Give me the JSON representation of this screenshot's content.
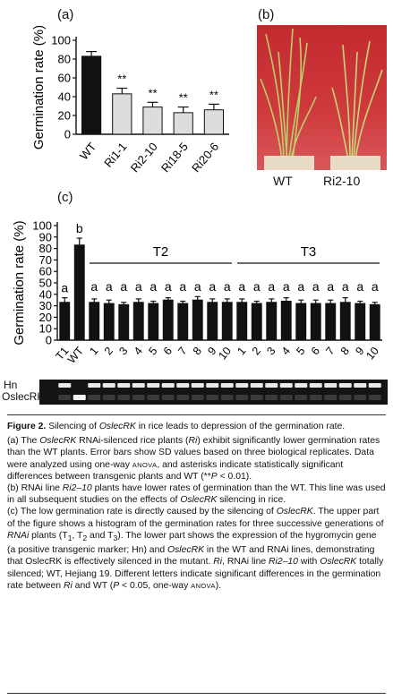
{
  "panels": {
    "a": "(a)",
    "b": "(b)",
    "c": "(c)"
  },
  "photo": {
    "labels": [
      "WT",
      "Ri2-10"
    ]
  },
  "gel": {
    "rows": [
      "Hn",
      "OslecRK"
    ]
  },
  "chart_data": [
    {
      "type": "bar",
      "panel": "a",
      "categories": [
        "WT",
        "Ri1-1",
        "Ri2-10",
        "Ri18-5",
        "Ri20-6"
      ],
      "values": [
        83,
        43,
        29,
        23,
        26
      ],
      "errors": [
        5,
        6,
        5,
        6,
        6
      ],
      "annotations": [
        "",
        "**",
        "**",
        "**",
        "**"
      ],
      "colors": [
        "#111111",
        "#dddddd",
        "#dddddd",
        "#dddddd",
        "#dddddd"
      ],
      "ylabel": "Germination rate (%)",
      "ylim": [
        0,
        100
      ],
      "yticks": [
        0,
        20,
        40,
        60,
        80,
        100
      ]
    },
    {
      "type": "bar",
      "panel": "c",
      "categories": [
        "T1",
        "WT",
        "1",
        "2",
        "3",
        "4",
        "5",
        "6",
        "7",
        "8",
        "9",
        "10",
        "1",
        "2",
        "3",
        "4",
        "5",
        "6",
        "7",
        "8",
        "9",
        "10"
      ],
      "values": [
        33,
        83,
        33,
        32,
        31,
        33,
        32,
        35,
        32,
        35,
        33,
        33,
        33,
        32,
        33,
        34,
        32,
        32,
        32,
        33,
        32,
        31
      ],
      "errors": [
        4,
        6,
        3,
        3,
        2,
        3,
        2,
        2,
        2,
        3,
        3,
        3,
        3,
        2,
        3,
        3,
        3,
        3,
        3,
        4,
        2,
        2
      ],
      "letters": [
        "a",
        "b",
        "a",
        "a",
        "a",
        "a",
        "a",
        "a",
        "a",
        "a",
        "a",
        "a",
        "a",
        "a",
        "a",
        "a",
        "a",
        "a",
        "a",
        "a",
        "a",
        "a"
      ],
      "colors": [
        "#111111",
        "#111111",
        "#111111",
        "#111111",
        "#111111",
        "#111111",
        "#111111",
        "#111111",
        "#111111",
        "#111111",
        "#111111",
        "#111111",
        "#111111",
        "#111111",
        "#111111",
        "#111111",
        "#111111",
        "#111111",
        "#111111",
        "#111111",
        "#111111",
        "#111111"
      ],
      "groups": [
        {
          "label": "T2",
          "from": 2,
          "to": 11
        },
        {
          "label": "T3",
          "from": 12,
          "to": 21
        }
      ],
      "ylabel": "Germination rate (%)",
      "ylim": [
        0,
        100
      ],
      "yticks": [
        0,
        10,
        20,
        30,
        40,
        50,
        60,
        70,
        80,
        90,
        100
      ]
    }
  ],
  "caption": {
    "fig_label": "Figure 2.",
    "title_pre": "Silencing of ",
    "title_gene": "OslecRK",
    "title_post": " in rice leads to depression of the germination rate.",
    "a_1": "(a) The ",
    "a_gene": "OslecRK",
    "a_2": " RNAi-silenced rice plants (",
    "a_ri": "Ri",
    "a_3": ") exhibit significantly lower germination rates than the WT plants. Error bars show SD values based on three biological replicates. Data were analyzed using one-way ",
    "a_anova": "ANOVA",
    "a_4": ", and asterisks indicate statistically significant differences between transgenic plants and WT (**",
    "a_p": "P",
    "a_5": " < 0.01).",
    "b_1": "(b) RNAi line ",
    "b_line": "Ri2–10",
    "b_2": " plants have lower rates of germination than the WT. This line was used in all subsequent studies on the effects of ",
    "b_gene": "OslecRK",
    "b_3": " silencing in rice.",
    "c_1": "(c) The low germination rate is directly caused by the silencing of ",
    "c_gene": "OslecRK",
    "c_2": ". The upper part of the figure shows a histogram of the germination rates for three successive generations of ",
    "c_rnai": "RNAi",
    "c_3": " plants (T",
    "c_s1": "1",
    "c_4": ", T",
    "c_s2": "2",
    "c_5": " and T",
    "c_s3": "3",
    "c_6": "). The lower part shows the expression of the hygromycin gene (a positive transgenic marker; Hn) and ",
    "c_gene2": "OslecRK",
    "c_7": " in the WT and RNAi lines, demonstrating that OslecRK is effectively silenced in the mutant. ",
    "c_ri": "Ri",
    "c_8": ", RNAi line ",
    "c_line": "Ri2–10",
    "c_9": " with ",
    "c_gene3": "OslecRK",
    "c_10": " totally silenced; WT, Hejiang 19. Different letters indicate significant differences in the germination rate between ",
    "c_ri2": "Ri",
    "c_11": " and WT (",
    "c_p": "P",
    "c_12": " < 0.05, one-way ",
    "c_anova": "ANOVA",
    "c_13": ")."
  }
}
